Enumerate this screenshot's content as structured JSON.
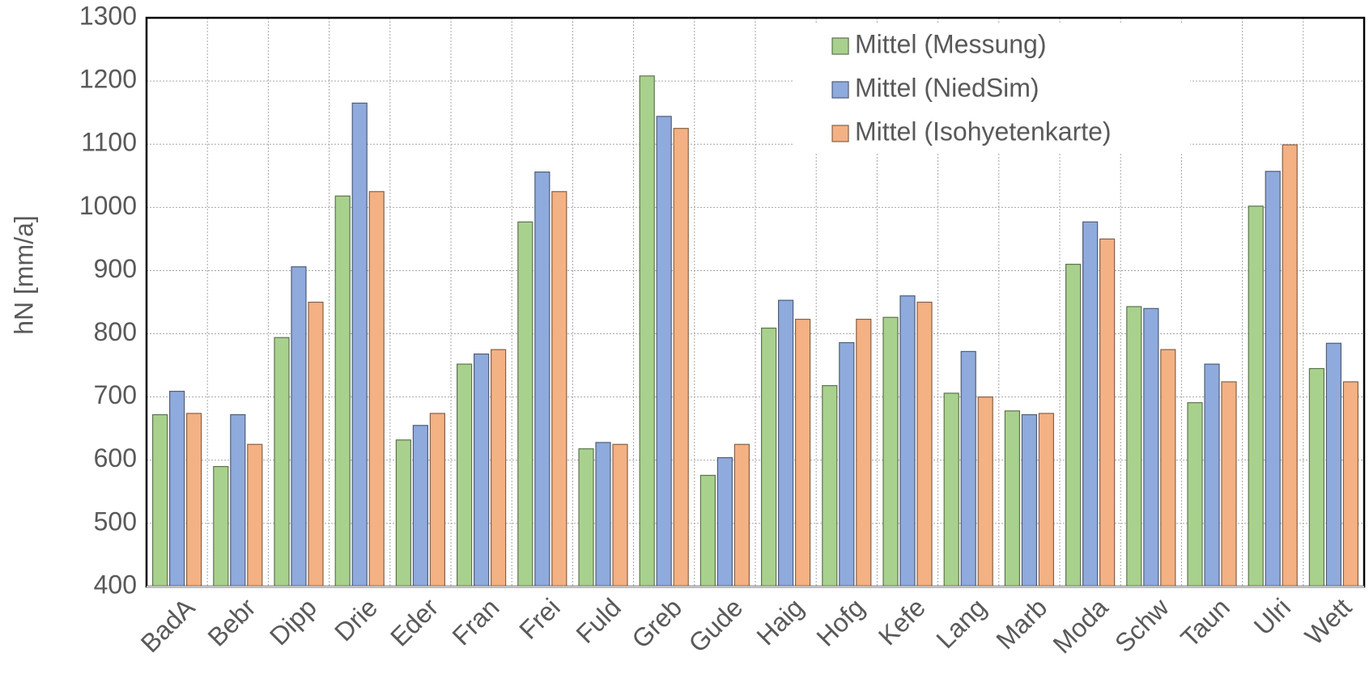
{
  "chart_data": {
    "type": "bar",
    "ylabel": "hN [mm/a]",
    "categories": [
      "BadA",
      "Bebr",
      "Dipp",
      "Drie",
      "Eder",
      "Fran",
      "Frei",
      "Fuld",
      "Greb",
      "Gude",
      "Haig",
      "Hofg",
      "Kefe",
      "Lang",
      "Marb",
      "Moda",
      "Schw",
      "Taun",
      "Ulri",
      "Wett"
    ],
    "series": [
      {
        "name": "Mittel (Messung)",
        "color": "#a9d18e",
        "values": [
          672,
          590,
          794,
          1018,
          632,
          752,
          977,
          618,
          1208,
          576,
          809,
          718,
          826,
          706,
          678,
          910,
          843,
          691,
          1002,
          745
        ]
      },
      {
        "name": "Mittel (NiedSim)",
        "color": "#8faadc",
        "values": [
          709,
          672,
          906,
          1165,
          655,
          768,
          1056,
          628,
          1144,
          604,
          853,
          786,
          860,
          772,
          672,
          977,
          840,
          752,
          1057,
          785
        ]
      },
      {
        "name": "Mittel (Isohyetenkarte)",
        "color": "#f4b183",
        "values": [
          674,
          625,
          850,
          1025,
          674,
          775,
          1025,
          625,
          1125,
          625,
          823,
          823,
          850,
          700,
          674,
          950,
          775,
          724,
          1099,
          724
        ]
      }
    ],
    "ylim": [
      400,
      1300
    ],
    "yticks": [
      400,
      500,
      600,
      700,
      800,
      900,
      1000,
      1100,
      1200,
      1300
    ],
    "grid": true,
    "legend": "upper right"
  }
}
